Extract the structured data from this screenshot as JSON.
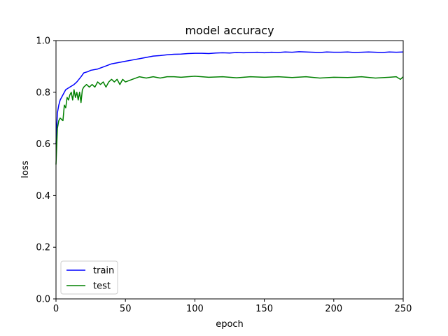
{
  "chart_data": {
    "type": "line",
    "title": "model accuracy",
    "xlabel": "epoch",
    "ylabel": "loss",
    "xlim": [
      0,
      250
    ],
    "ylim": [
      0.0,
      1.0
    ],
    "xticks": [
      0,
      50,
      100,
      150,
      200,
      250
    ],
    "yticks": [
      0.0,
      0.2,
      0.4,
      0.6,
      0.8,
      1.0
    ],
    "xtick_labels": [
      "0",
      "50",
      "100",
      "150",
      "200",
      "250"
    ],
    "ytick_labels": [
      "0.0",
      "0.2",
      "0.4",
      "0.6",
      "0.8",
      "1.0"
    ],
    "grid": false,
    "legend_position": "lower-left",
    "series": [
      {
        "name": "train",
        "color": "#0000ff",
        "x": [
          0,
          1,
          2,
          3,
          5,
          7,
          10,
          13,
          15,
          18,
          20,
          23,
          25,
          30,
          35,
          40,
          45,
          50,
          55,
          60,
          65,
          70,
          75,
          80,
          85,
          90,
          95,
          100,
          105,
          110,
          115,
          120,
          125,
          130,
          135,
          140,
          145,
          150,
          155,
          160,
          165,
          170,
          175,
          180,
          185,
          190,
          195,
          200,
          205,
          210,
          215,
          220,
          225,
          230,
          235,
          240,
          245,
          250
        ],
        "y": [
          0.6,
          0.72,
          0.75,
          0.77,
          0.79,
          0.81,
          0.82,
          0.83,
          0.84,
          0.86,
          0.875,
          0.88,
          0.885,
          0.89,
          0.9,
          0.91,
          0.915,
          0.92,
          0.925,
          0.93,
          0.935,
          0.94,
          0.942,
          0.945,
          0.947,
          0.948,
          0.95,
          0.951,
          0.951,
          0.95,
          0.952,
          0.953,
          0.952,
          0.954,
          0.953,
          0.954,
          0.955,
          0.953,
          0.955,
          0.954,
          0.956,
          0.955,
          0.957,
          0.956,
          0.955,
          0.954,
          0.956,
          0.955,
          0.955,
          0.956,
          0.954,
          0.955,
          0.956,
          0.955,
          0.954,
          0.956,
          0.955,
          0.956
        ]
      },
      {
        "name": "test",
        "color": "#008000",
        "x": [
          0,
          1,
          2,
          3,
          5,
          6,
          7,
          8,
          9,
          10,
          11,
          12,
          13,
          14,
          15,
          16,
          17,
          18,
          19,
          20,
          22,
          24,
          26,
          28,
          30,
          32,
          34,
          36,
          38,
          40,
          42,
          44,
          46,
          48,
          50,
          55,
          60,
          65,
          70,
          75,
          80,
          85,
          90,
          95,
          100,
          110,
          120,
          130,
          140,
          150,
          160,
          170,
          180,
          190,
          200,
          210,
          220,
          230,
          240,
          245,
          248,
          250
        ],
        "y": [
          0.52,
          0.66,
          0.69,
          0.7,
          0.69,
          0.75,
          0.74,
          0.78,
          0.77,
          0.79,
          0.8,
          0.77,
          0.81,
          0.78,
          0.8,
          0.77,
          0.8,
          0.76,
          0.81,
          0.82,
          0.83,
          0.82,
          0.83,
          0.82,
          0.84,
          0.83,
          0.84,
          0.82,
          0.84,
          0.85,
          0.84,
          0.85,
          0.83,
          0.85,
          0.84,
          0.85,
          0.86,
          0.855,
          0.86,
          0.855,
          0.86,
          0.86,
          0.858,
          0.86,
          0.862,
          0.858,
          0.86,
          0.856,
          0.86,
          0.858,
          0.86,
          0.857,
          0.86,
          0.855,
          0.858,
          0.857,
          0.86,
          0.855,
          0.858,
          0.86,
          0.85,
          0.86
        ]
      }
    ]
  }
}
